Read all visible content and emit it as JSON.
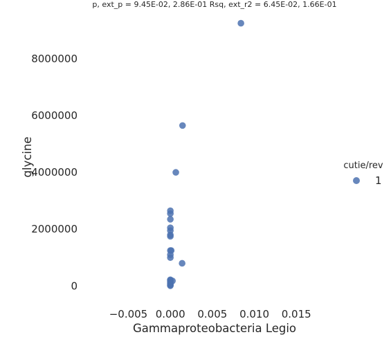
{
  "chart_data": {
    "type": "scatter",
    "title": "p, ext_p = 9.45E-02, 2.86E-01 Rsq, ext_r2 = 6.45E-02, 1.66E-01",
    "xlabel": "Gammaproteobacteria Legio",
    "ylabel": "glycine",
    "xlim": [
      -0.0085,
      0.0205
    ],
    "ylim": [
      -650000,
      9800000
    ],
    "x_ticks": [
      -0.005,
      0.0,
      0.005,
      0.01,
      0.015
    ],
    "x_tick_labels": [
      "−0.005",
      "0.000",
      "0.005",
      "0.010",
      "0.015"
    ],
    "y_ticks": [
      0,
      2000000,
      4000000,
      6000000,
      8000000
    ],
    "y_tick_labels": [
      "0",
      "2000000",
      "4000000",
      "6000000",
      "8000000"
    ],
    "grid": false,
    "legend": {
      "title": "cutie/rev",
      "placement": "right"
    },
    "colors": {
      "series": "#4c72b0"
    },
    "series": [
      {
        "name": "1",
        "points": [
          {
            "x": 0.0084,
            "y": 9250000
          },
          {
            "x": 0.00145,
            "y": 5650000
          },
          {
            "x": 0.00065,
            "y": 4000000
          },
          {
            "x": 0.0,
            "y": 2650000
          },
          {
            "x": 0.0,
            "y": 2550000
          },
          {
            "x": 0.0,
            "y": 2350000
          },
          {
            "x": 0.0,
            "y": 2050000
          },
          {
            "x": 0.0,
            "y": 1950000
          },
          {
            "x": 0.0,
            "y": 1800000
          },
          {
            "x": 0.0,
            "y": 1750000
          },
          {
            "x": 0.0,
            "y": 1250000
          },
          {
            "x": 0.0001,
            "y": 1250000
          },
          {
            "x": 0.0,
            "y": 1100000
          },
          {
            "x": 0.0,
            "y": 1000000
          },
          {
            "x": 0.0014,
            "y": 800000
          },
          {
            "x": 0.0,
            "y": 220000
          },
          {
            "x": 0.0,
            "y": 200000
          },
          {
            "x": 0.00025,
            "y": 180000
          },
          {
            "x": 0.0,
            "y": 150000
          },
          {
            "x": 0.0,
            "y": 100000
          },
          {
            "x": 0.0,
            "y": 60000
          },
          {
            "x": 0.0,
            "y": 30000
          },
          {
            "x": 0.0,
            "y": 10000
          }
        ]
      }
    ]
  }
}
